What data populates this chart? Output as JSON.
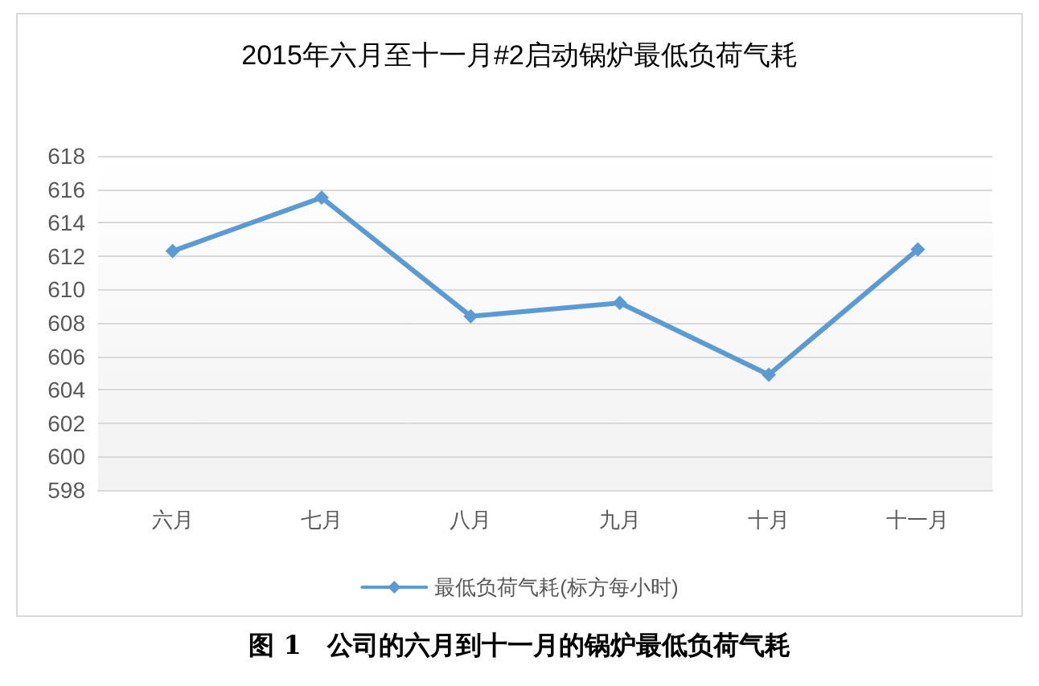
{
  "chart_data": {
    "type": "line",
    "title": "2015年六月至十一月#2启动锅炉最低负荷气耗",
    "categories": [
      "六月",
      "七月",
      "八月",
      "九月",
      "十月",
      "十一月"
    ],
    "series": [
      {
        "name": "最低负荷气耗(标方每小时)",
        "color": "#5b9bd5",
        "values": [
          612.3,
          615.5,
          608.4,
          609.2,
          604.9,
          612.4
        ]
      }
    ],
    "ylim": [
      598,
      618
    ],
    "yticks": [
      598,
      600,
      602,
      604,
      606,
      608,
      610,
      612,
      614,
      616,
      618
    ],
    "grid": "y",
    "legend": "bottom",
    "marker": "diamond",
    "line_style": "solid",
    "annotations": [
      "图 1　公司的六月到十一月的锅炉最低负荷气耗"
    ]
  }
}
